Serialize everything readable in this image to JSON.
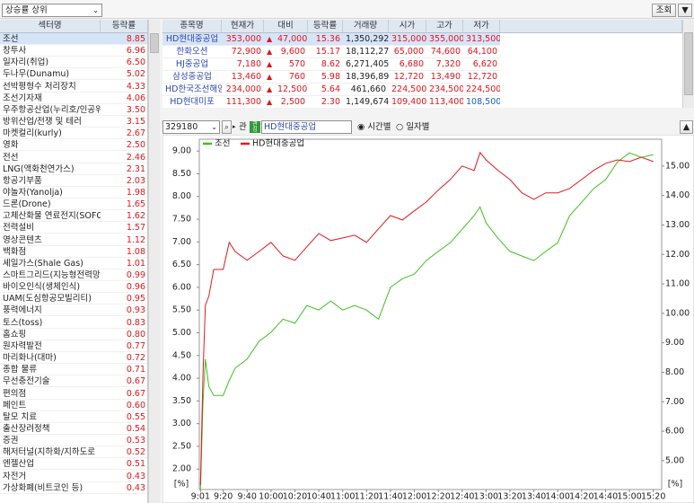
{
  "top_bar": {
    "filter": "상승률 상위",
    "query_button": "조회",
    "menu_button": "▼"
  },
  "sector_table": {
    "columns": [
      "섹터명",
      "등락률"
    ],
    "rows": [
      [
        "조선",
        "8.85"
      ],
      [
        "창투사",
        "6.96"
      ],
      [
        "일자리(취업)",
        "6.50"
      ],
      [
        "두나무(Dunamu)",
        "5.02"
      ],
      [
        "선박평형수 처리장치",
        "4.33"
      ],
      [
        "조선기자재",
        "4.06"
      ],
      [
        "우주항공산업(누리호/인공위",
        "3.50"
      ],
      [
        "방위산업/전쟁 및 테러",
        "3.15"
      ],
      [
        "마켓컬리(kurly)",
        "2.67"
      ],
      [
        "영화",
        "2.50"
      ],
      [
        "전선",
        "2.46"
      ],
      [
        "LNG(액화천연가스)",
        "2.31"
      ],
      [
        "항공기부품",
        "2.03"
      ],
      [
        "야놀자(Yanolja)",
        "1.98"
      ],
      [
        "드론(Drone)",
        "1.65"
      ],
      [
        "고체산화물 연료전지(SOFC)",
        "1.62"
      ],
      [
        "전력설비",
        "1.57"
      ],
      [
        "영상콘텐츠",
        "1.12"
      ],
      [
        "백화점",
        "1.08"
      ],
      [
        "셰일가스(Shale Gas)",
        "1.01"
      ],
      [
        "스마트그리드(지능형전력망",
        "0.99"
      ],
      [
        "바이오인식(생체인식)",
        "0.96"
      ],
      [
        "UAM(도심항공모빌리티)",
        "0.95"
      ],
      [
        "풍력에너지",
        "0.93"
      ],
      [
        "토스(toss)",
        "0.83"
      ],
      [
        "홈쇼핑",
        "0.80"
      ],
      [
        "원자력발전",
        "0.77"
      ],
      [
        "마리화나(대마)",
        "0.72"
      ],
      [
        "종합 물류",
        "0.71"
      ],
      [
        "무선충전기술",
        "0.67"
      ],
      [
        "편의점",
        "0.67"
      ],
      [
        "페인트",
        "0.60"
      ],
      [
        "탈모 치료",
        "0.55"
      ],
      [
        "출산장려정책",
        "0.54"
      ],
      [
        "증권",
        "0.53"
      ],
      [
        "해저터널(지하화/지하도로",
        "0.52"
      ],
      [
        "엔젤산업",
        "0.51"
      ],
      [
        "자전거",
        "0.43"
      ],
      [
        "가상화폐(비트코인 등)",
        "0.43"
      ]
    ]
  },
  "stock_table": {
    "columns": [
      "종목명",
      "현재가",
      "대비",
      "등락률",
      "거래량",
      "시가",
      "고가",
      "저가"
    ],
    "rows": [
      [
        "HD현대중공업",
        "353,000",
        "▲",
        "47,000",
        "15.36",
        "1,350,292",
        "315,000",
        "355,000",
        "313,500"
      ],
      [
        "한화오션",
        "72,900",
        "▲",
        "9,600",
        "15.17",
        "18,112,272",
        "65,000",
        "74,600",
        "64,100"
      ],
      [
        "HJ중공업",
        "7,180",
        "▲",
        "570",
        "8.62",
        "6,271,405",
        "6,680",
        "7,320",
        "6,620"
      ],
      [
        "삼성중공업",
        "13,460",
        "▲",
        "760",
        "5.98",
        "18,396,890",
        "12,720",
        "13,490",
        "12,720"
      ],
      [
        "HD한국조선해양",
        "234,000",
        "▲",
        "12,500",
        "5.64",
        "461,660",
        "224,500",
        "234,500",
        "224,500"
      ],
      [
        "HD현대미포",
        "111,300",
        "▲",
        "2,500",
        "2.30",
        "1,149,674",
        "109,400",
        "113,400",
        "108,500"
      ]
    ]
  },
  "chart_controls": {
    "code": "329180",
    "link": "관",
    "name": "HD현대중공업",
    "options": [
      "시간별",
      "일자별"
    ],
    "collapse_button": "▲"
  },
  "chart_data": {
    "type": "line",
    "x": [
      "9:01",
      "9:03",
      "9:05",
      "9:08",
      "9:12",
      "9:20",
      "9:25",
      "9:30",
      "9:40",
      "9:50",
      "10:00",
      "10:10",
      "10:20",
      "10:30",
      "10:40",
      "10:50",
      "11:00",
      "11:10",
      "11:20",
      "11:30",
      "11:40",
      "11:50",
      "12:00",
      "12:10",
      "12:20",
      "12:30",
      "12:40",
      "12:50",
      "12:55",
      "13:00",
      "13:10",
      "13:20",
      "13:30",
      "13:40",
      "13:50",
      "14:00",
      "14:10",
      "14:20",
      "14:30",
      "14:40",
      "14:50",
      "15:00",
      "15:10",
      "15:20"
    ],
    "series": [
      {
        "name": "조선",
        "color": "#3cc21d",
        "axis": "y",
        "values": [
          1.55,
          3.43,
          4.42,
          3.82,
          3.62,
          3.62,
          3.95,
          4.22,
          4.42,
          4.81,
          5.01,
          5.3,
          5.21,
          5.6,
          5.5,
          5.7,
          5.5,
          5.6,
          5.5,
          5.3,
          6.0,
          6.19,
          6.29,
          6.59,
          6.79,
          6.98,
          7.28,
          7.58,
          7.77,
          7.42,
          7.08,
          6.79,
          6.69,
          6.59,
          6.79,
          6.98,
          7.58,
          7.87,
          8.17,
          8.37,
          8.76,
          8.96,
          8.86,
          8.92
        ]
      },
      {
        "name": "HD현대중공업",
        "color": "#e8181e",
        "axis": "y2",
        "values": [
          4.18,
          7.84,
          10.27,
          10.58,
          11.49,
          11.49,
          12.41,
          12.1,
          11.8,
          12.1,
          12.41,
          11.95,
          11.8,
          12.26,
          12.71,
          12.47,
          12.56,
          12.65,
          12.41,
          12.87,
          13.32,
          13.17,
          13.48,
          13.78,
          14.18,
          14.54,
          15.0,
          14.85,
          15.46,
          15.21,
          14.85,
          14.54,
          14.09,
          13.87,
          14.09,
          14.09,
          14.24,
          14.54,
          14.85,
          15.09,
          15.21,
          15.15,
          15.3,
          15.15
        ]
      }
    ],
    "xlim": [
      "9:00",
      "15:27"
    ],
    "xticks": [
      "9:01",
      "9:20",
      "9:40",
      "10:00",
      "10:20",
      "10:40",
      "11:00",
      "11:20",
      "11:40",
      "12:00",
      "12:20",
      "12:40",
      "13:00",
      "13:20",
      "13:40",
      "14:00",
      "14:20",
      "14:40",
      "15:00",
      "15:20"
    ],
    "ylim": [
      1.55,
      9.26
    ],
    "yticks": [
      {
        "value": 2,
        "label": "2.00"
      },
      {
        "value": 2.5,
        "label": "2.50"
      },
      {
        "value": 3,
        "label": "3.00"
      },
      {
        "value": 3.5,
        "label": "3.50"
      },
      {
        "value": 4,
        "label": "4.00"
      },
      {
        "value": 4.5,
        "label": "4.50"
      },
      {
        "value": 5,
        "label": "5.00"
      },
      {
        "value": 5.5,
        "label": "5.50"
      },
      {
        "value": 6,
        "label": "6.00"
      },
      {
        "value": 6.5,
        "label": "6.50"
      },
      {
        "value": 7,
        "label": "7.00"
      },
      {
        "value": 7.5,
        "label": "7.50"
      },
      {
        "value": 8,
        "label": "8.00"
      },
      {
        "value": 8.5,
        "label": "8.50"
      },
      {
        "value": 9,
        "label": "9.00"
      }
    ],
    "y2lim": [
      4.02,
      15.91
    ],
    "y2ticks": [
      {
        "value": 5,
        "label": "5.00"
      },
      {
        "value": 6,
        "label": "6.00"
      },
      {
        "value": 7,
        "label": "7.00"
      },
      {
        "value": 8,
        "label": "8.00"
      },
      {
        "value": 9,
        "label": "9.00"
      },
      {
        "value": 10,
        "label": "10.00"
      },
      {
        "value": 11,
        "label": "11.00"
      },
      {
        "value": 12,
        "label": "12.00"
      },
      {
        "value": 13,
        "label": "13.00"
      },
      {
        "value": 14,
        "label": "14.00"
      },
      {
        "value": 15,
        "label": "15.00"
      }
    ],
    "ylabel": "[%]",
    "y2label": "[%]",
    "legend": "upper left"
  }
}
